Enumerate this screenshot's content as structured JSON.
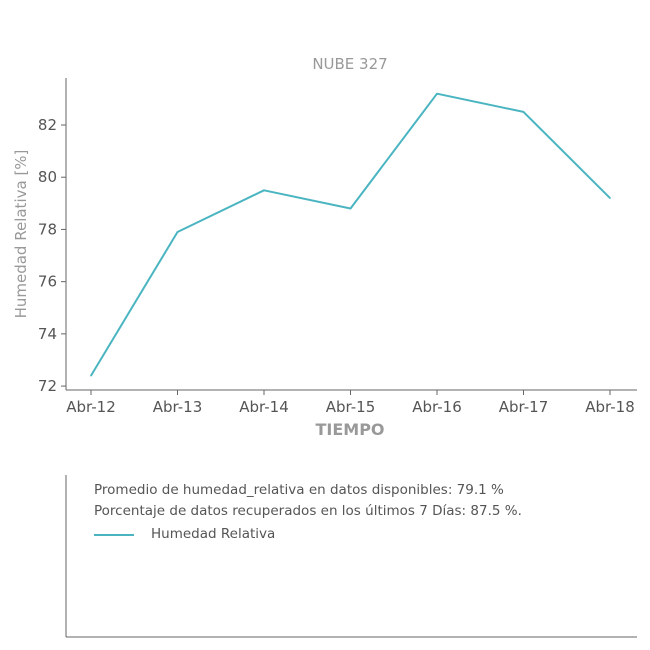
{
  "chart_data": {
    "type": "line",
    "title": "NUBE 327",
    "xlabel": "TIEMPO",
    "ylabel": "Humedad Relativa [%]",
    "categories": [
      "Abr-12",
      "Abr-13",
      "Abr-14",
      "Abr-15",
      "Abr-16",
      "Abr-17",
      "Abr-18"
    ],
    "series": [
      {
        "name": "Humedad Relativa",
        "color": "#4ab5c1",
        "values": [
          72.4,
          77.9,
          79.5,
          78.8,
          83.2,
          82.5,
          79.2
        ]
      }
    ],
    "yticks": [
      72,
      74,
      76,
      78,
      80,
      82
    ],
    "ylim": [
      71.85,
      83.8
    ],
    "grid": false
  },
  "info_panel": {
    "line1": "Promedio de humedad_relativa en datos disponibles: 79.1 %",
    "line2": "Porcentaje de datos recuperados en los últimos 7 Días: 87.5 %.",
    "legend_label": "Humedad Relativa"
  }
}
